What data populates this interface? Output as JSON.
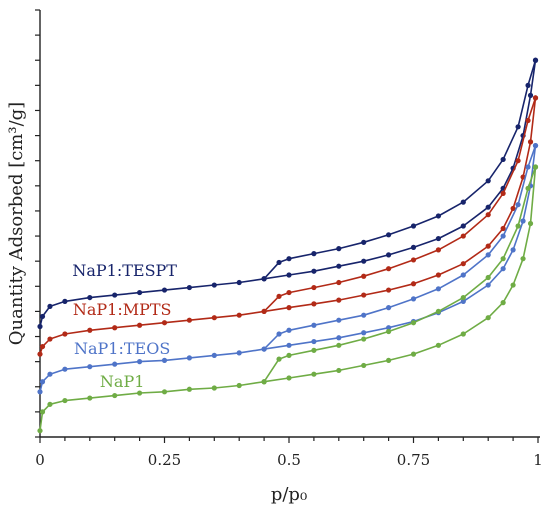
{
  "chart_data": {
    "type": "line",
    "title": "",
    "xlabel": "p/p₀",
    "ylabel": "Quantity Adsorbed [cm³/g]",
    "xlim": [
      0,
      1
    ],
    "x_ticks": [
      {
        "value": 0,
        "label": "0"
      },
      {
        "value": 0.25,
        "label": "0.25"
      },
      {
        "value": 0.5,
        "label": "0.5"
      },
      {
        "value": 0.75,
        "label": "0.75"
      },
      {
        "value": 1,
        "label": "1"
      }
    ],
    "ylim": [
      0,
      340
    ],
    "y_tick_values": [
      0,
      20,
      40,
      60,
      80,
      100,
      120,
      140,
      160,
      180,
      200,
      220,
      240,
      260,
      280,
      300,
      320,
      340
    ],
    "y_tick_labels_shown": false,
    "grid": false,
    "legend": "none (series labelled inline)",
    "series": [
      {
        "name": "NaP1:TESPT",
        "color": "#17246b",
        "adsorption": {
          "x": [
            0.0,
            0.005,
            0.02,
            0.05,
            0.1,
            0.15,
            0.2,
            0.25,
            0.3,
            0.35,
            0.4,
            0.45,
            0.5,
            0.55,
            0.6,
            0.65,
            0.7,
            0.75,
            0.8,
            0.85,
            0.9,
            0.93,
            0.95,
            0.97,
            0.985,
            0.995
          ],
          "y": [
            88,
            96,
            104,
            108,
            111,
            113,
            115,
            117,
            119,
            121,
            123,
            126,
            129,
            132,
            136,
            140,
            145,
            151,
            158,
            168,
            183,
            198,
            214,
            240,
            272,
            300
          ]
        },
        "desorption": {
          "x": [
            0.995,
            0.98,
            0.96,
            0.93,
            0.9,
            0.85,
            0.8,
            0.75,
            0.7,
            0.65,
            0.6,
            0.55,
            0.5,
            0.48,
            0.45
          ],
          "y": [
            300,
            280,
            247,
            221,
            204,
            187,
            176,
            168,
            161,
            155,
            150,
            146,
            142,
            139,
            126
          ]
        }
      },
      {
        "name": "NaP1:MPTS",
        "color": "#b22a17",
        "adsorption": {
          "x": [
            0.0,
            0.005,
            0.02,
            0.05,
            0.1,
            0.15,
            0.2,
            0.25,
            0.3,
            0.35,
            0.4,
            0.45,
            0.5,
            0.55,
            0.6,
            0.65,
            0.7,
            0.75,
            0.8,
            0.85,
            0.9,
            0.93,
            0.95,
            0.97,
            0.985,
            0.995
          ],
          "y": [
            66,
            72,
            78,
            82,
            85,
            87,
            89,
            91,
            93,
            95,
            97,
            100,
            103,
            106,
            109,
            113,
            117,
            122,
            129,
            138,
            152,
            166,
            182,
            207,
            235,
            270
          ]
        },
        "desorption": {
          "x": [
            0.995,
            0.98,
            0.96,
            0.93,
            0.9,
            0.85,
            0.8,
            0.75,
            0.7,
            0.65,
            0.6,
            0.55,
            0.5,
            0.48,
            0.45
          ],
          "y": [
            270,
            252,
            220,
            194,
            177,
            160,
            149,
            141,
            134,
            128,
            123,
            119,
            115,
            112,
            100
          ]
        }
      },
      {
        "name": "NaP1:TEOS",
        "color": "#4f74c8",
        "adsorption": {
          "x": [
            0.0,
            0.005,
            0.02,
            0.05,
            0.1,
            0.15,
            0.2,
            0.25,
            0.3,
            0.35,
            0.4,
            0.45,
            0.5,
            0.55,
            0.6,
            0.65,
            0.7,
            0.75,
            0.8,
            0.85,
            0.9,
            0.93,
            0.95,
            0.97,
            0.985,
            0.995
          ],
          "y": [
            36,
            44,
            50,
            54,
            56,
            58,
            60,
            61,
            63,
            65,
            67,
            70,
            73,
            76,
            79,
            83,
            87,
            92,
            99,
            108,
            121,
            134,
            149,
            172,
            200,
            232
          ]
        },
        "desorption": {
          "x": [
            0.995,
            0.98,
            0.96,
            0.93,
            0.9,
            0.85,
            0.8,
            0.75,
            0.7,
            0.65,
            0.6,
            0.55,
            0.5,
            0.48,
            0.45
          ],
          "y": [
            232,
            215,
            185,
            160,
            145,
            129,
            118,
            110,
            103,
            97,
            93,
            89,
            85,
            82,
            70
          ]
        }
      },
      {
        "name": "NaP1",
        "color": "#6fac45",
        "adsorption": {
          "x": [
            0.0,
            0.005,
            0.02,
            0.05,
            0.1,
            0.15,
            0.2,
            0.25,
            0.3,
            0.35,
            0.4,
            0.45,
            0.5,
            0.55,
            0.6,
            0.65,
            0.7,
            0.75,
            0.8,
            0.85,
            0.9,
            0.93,
            0.95,
            0.97,
            0.985,
            0.995
          ],
          "y": [
            5,
            20,
            26,
            29,
            31,
            33,
            35,
            36,
            38,
            39,
            41,
            44,
            47,
            50,
            53,
            57,
            61,
            66,
            73,
            82,
            95,
            107,
            121,
            142,
            170,
            215
          ]
        },
        "desorption": {
          "x": [
            0.995,
            0.98,
            0.96,
            0.93,
            0.9,
            0.85,
            0.8,
            0.75,
            0.7,
            0.65,
            0.6,
            0.55,
            0.5,
            0.48,
            0.45
          ],
          "y": [
            215,
            198,
            168,
            142,
            127,
            111,
            100,
            91,
            84,
            78,
            73,
            69,
            65,
            62,
            44
          ]
        }
      }
    ]
  }
}
